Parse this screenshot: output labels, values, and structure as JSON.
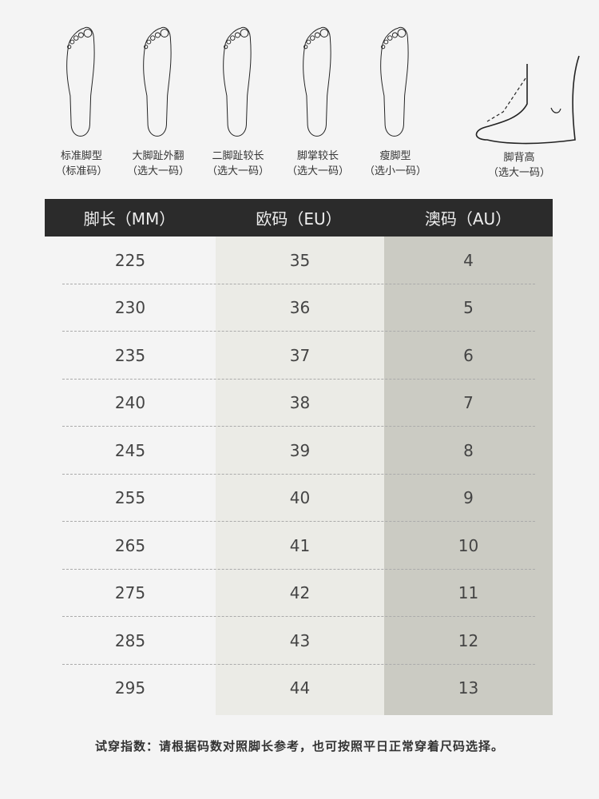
{
  "foot_types": [
    {
      "name": "标准脚型",
      "advice": "（标准码）"
    },
    {
      "name": "大脚趾外翻",
      "advice": "（选大一码）"
    },
    {
      "name": "二脚趾较长",
      "advice": "（选大一码）"
    },
    {
      "name": "脚掌较长",
      "advice": "（选大一码）"
    },
    {
      "name": "瘦脚型",
      "advice": "（选小一码）"
    },
    {
      "name": "脚背高",
      "advice": "（选大一码）"
    }
  ],
  "table": {
    "headers": [
      "脚长（MM）",
      "欧码（EU）",
      "澳码（AU）"
    ],
    "rows": [
      [
        "225",
        "35",
        "4"
      ],
      [
        "230",
        "36",
        "5"
      ],
      [
        "235",
        "37",
        "6"
      ],
      [
        "240",
        "38",
        "7"
      ],
      [
        "245",
        "39",
        "8"
      ],
      [
        "255",
        "40",
        "9"
      ],
      [
        "265",
        "41",
        "10"
      ],
      [
        "275",
        "42",
        "11"
      ],
      [
        "285",
        "43",
        "12"
      ],
      [
        "295",
        "44",
        "13"
      ]
    ]
  },
  "note": "试穿指数：请根据码数对照脚长参考，也可按照平日正常穿着尺码选择。",
  "colors": {
    "header_bg": "#2b2b2b",
    "col_eu": "#ebebe6",
    "col_au": "#cbcbc3",
    "background": "#f4f4f4"
  }
}
